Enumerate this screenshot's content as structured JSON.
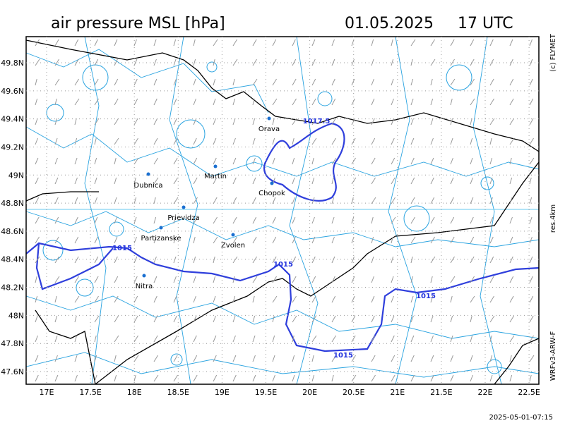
{
  "header": {
    "title": "air pressure MSL [hPa]",
    "date": "01.05.2025",
    "time": "17 UTC"
  },
  "side": {
    "copyright": "(c) FLYMET",
    "resolution": "res.4km",
    "model": "WRFv3-ARW-F"
  },
  "footer": {
    "timestamp": "2025-05-01-07:15"
  },
  "map": {
    "lat_ticks": [
      {
        "value": 49.8,
        "label": "49.8N"
      },
      {
        "value": 49.6,
        "label": "49.6N"
      },
      {
        "value": 49.4,
        "label": "49.4N"
      },
      {
        "value": 49.2,
        "label": "49.2N"
      },
      {
        "value": 49,
        "label": "49N"
      },
      {
        "value": 48.8,
        "label": "48.8N"
      },
      {
        "value": 48.6,
        "label": "48.6N"
      },
      {
        "value": 48.4,
        "label": "48.4N"
      },
      {
        "value": 48.2,
        "label": "48.2N"
      },
      {
        "value": 48,
        "label": "48N"
      },
      {
        "value": 47.8,
        "label": "47.8N"
      },
      {
        "value": 47.6,
        "label": "47.6N"
      }
    ],
    "lon_ticks": [
      {
        "value": 17,
        "label": "17E"
      },
      {
        "value": 17.5,
        "label": "17.5E"
      },
      {
        "value": 18,
        "label": "18E"
      },
      {
        "value": 18.5,
        "label": "18.5E"
      },
      {
        "value": 19,
        "label": "19E"
      },
      {
        "value": 19.5,
        "label": "19.5E"
      },
      {
        "value": 20,
        "label": "20E"
      },
      {
        "value": 20.5,
        "label": "20.5E"
      },
      {
        "value": 21,
        "label": "21E"
      },
      {
        "value": 21.5,
        "label": "21.5E"
      },
      {
        "value": 22,
        "label": "22E"
      },
      {
        "value": 22.5,
        "label": "22.5E"
      }
    ],
    "cities": [
      "Orava",
      "Chopok",
      "Martin",
      "Dubnica",
      "Prievidza",
      "Partizanske",
      "Zvolen",
      "Nitra"
    ],
    "isobar_labels": [
      1017.5,
      1015,
      1015,
      1015,
      1015
    ]
  }
}
